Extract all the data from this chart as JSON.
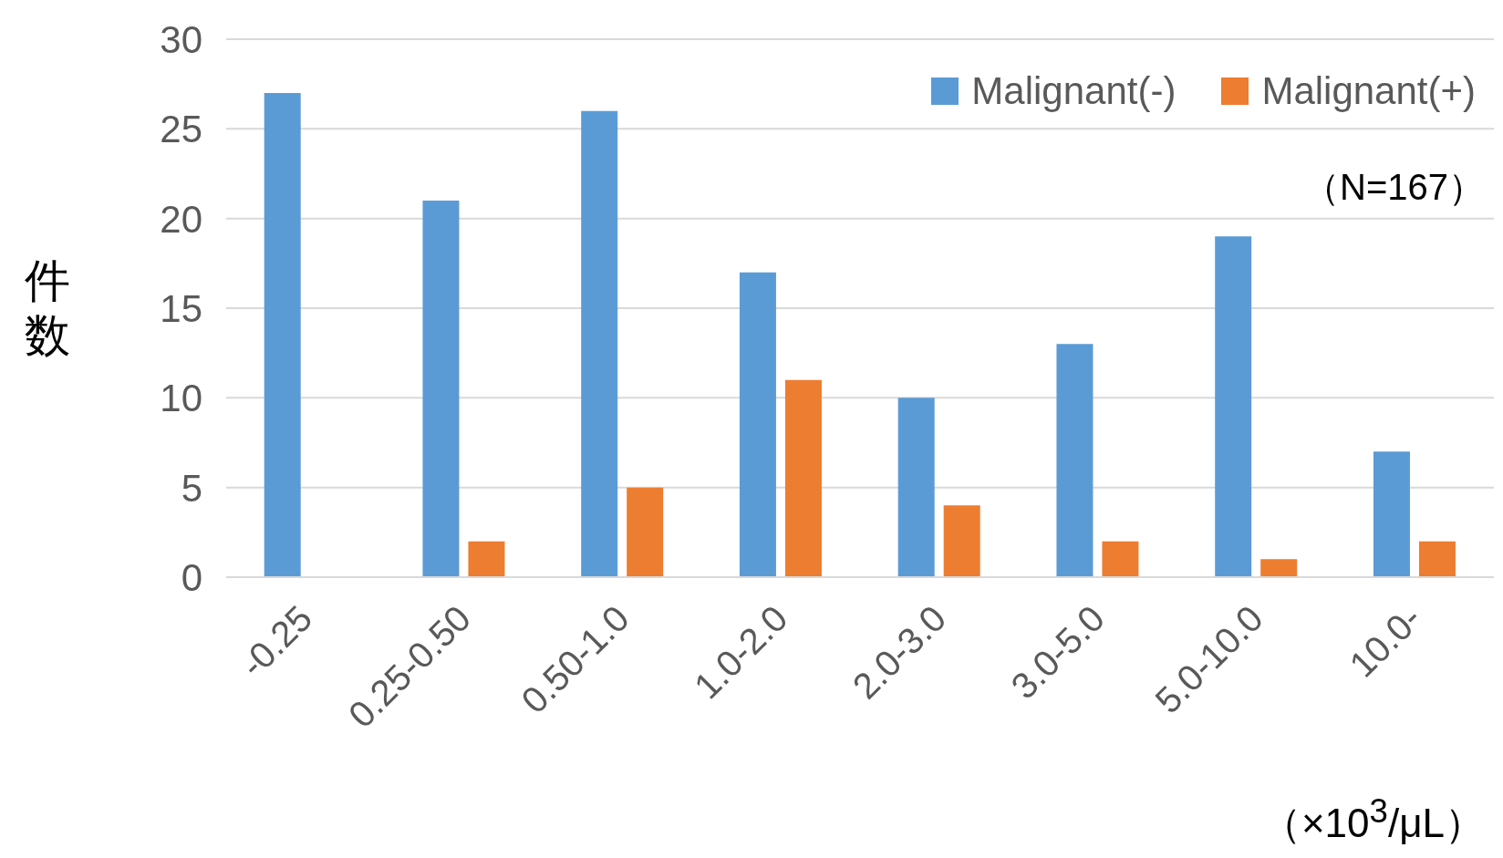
{
  "chart_data": {
    "type": "bar",
    "ylabel": "件数",
    "xlabel": "（×10$^{3}$/μL）",
    "annotations": [
      "（N=167）"
    ],
    "categories": [
      "-0.25",
      "0.25-0.50",
      "0.50-1.0",
      "1.0-2.0",
      "2.0-3.0",
      "3.0-5.0",
      "5.0-10.0",
      "10.0-"
    ],
    "series": [
      {
        "name": "Malignant(-)",
        "color": "#5b9bd5",
        "values": [
          27,
          21,
          26,
          17,
          10,
          13,
          19,
          7
        ]
      },
      {
        "name": "Malignant(+)",
        "color": "#ed7d31",
        "values": [
          0,
          2,
          5,
          11,
          4,
          2,
          1,
          2
        ]
      }
    ],
    "ylim": [
      0,
      30
    ],
    "yticks": [
      0,
      5,
      10,
      15,
      20,
      25,
      30
    ],
    "grid": "y",
    "legend": "top right"
  }
}
